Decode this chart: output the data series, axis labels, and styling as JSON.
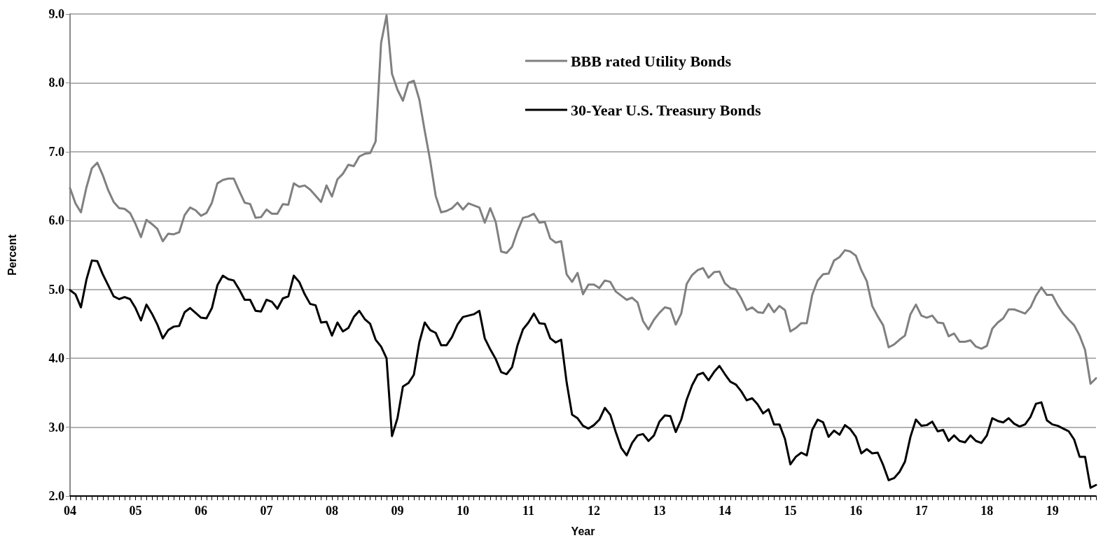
{
  "chart_data": {
    "type": "line",
    "xlabel": "Year",
    "ylabel": "Percent",
    "categories": [
      "04",
      null,
      null,
      null,
      null,
      null,
      null,
      null,
      null,
      null,
      null,
      null,
      "05",
      null,
      null,
      null,
      null,
      null,
      null,
      null,
      null,
      null,
      null,
      null,
      "06",
      null,
      null,
      null,
      null,
      null,
      null,
      null,
      null,
      null,
      null,
      null,
      "07",
      null,
      null,
      null,
      null,
      null,
      null,
      null,
      null,
      null,
      null,
      null,
      "08",
      null,
      null,
      null,
      null,
      null,
      null,
      null,
      null,
      null,
      null,
      null,
      "09",
      null,
      null,
      null,
      null,
      null,
      null,
      null,
      null,
      null,
      null,
      null,
      "10",
      null,
      null,
      null,
      null,
      null,
      null,
      null,
      null,
      null,
      null,
      null,
      "11",
      null,
      null,
      null,
      null,
      null,
      null,
      null,
      null,
      null,
      null,
      null,
      "12",
      null,
      null,
      null,
      null,
      null,
      null,
      null,
      null,
      null,
      null,
      null,
      "13",
      null,
      null,
      null,
      null,
      null,
      null,
      null,
      null,
      null,
      null,
      null,
      "14",
      null,
      null,
      null,
      null,
      null,
      null,
      null,
      null,
      null,
      null,
      null,
      "15",
      null,
      null,
      null,
      null,
      null,
      null,
      null,
      null,
      null,
      null,
      null,
      "16",
      null,
      null,
      null,
      null,
      null,
      null,
      null,
      null,
      null,
      null,
      null,
      "17",
      null,
      null,
      null,
      null,
      null,
      null,
      null,
      null,
      null,
      null,
      null,
      "18",
      null,
      null,
      null,
      null,
      null,
      null,
      null,
      null,
      null,
      null,
      null,
      "19",
      null,
      null,
      null,
      null,
      null,
      null,
      null,
      null
    ],
    "series": [
      {
        "name": "BBB rated Utility Bonds",
        "color": "#808080",
        "values": [
          6.47,
          6.25,
          6.12,
          6.48,
          6.76,
          6.84,
          6.66,
          6.44,
          6.27,
          6.18,
          6.17,
          6.11,
          5.95,
          5.76,
          6.01,
          5.95,
          5.88,
          5.7,
          5.81,
          5.8,
          5.83,
          6.08,
          6.19,
          6.15,
          6.07,
          6.11,
          6.26,
          6.54,
          6.59,
          6.61,
          6.61,
          6.43,
          6.26,
          6.24,
          6.04,
          6.05,
          6.16,
          6.1,
          6.1,
          6.24,
          6.23,
          6.54,
          6.49,
          6.51,
          6.45,
          6.36,
          6.27,
          6.51,
          6.35,
          6.6,
          6.68,
          6.81,
          6.79,
          6.93,
          6.97,
          6.98,
          7.15,
          8.58,
          8.98,
          8.13,
          7.9,
          7.74,
          8.0,
          8.03,
          7.76,
          7.3,
          6.87,
          6.36,
          6.12,
          6.14,
          6.18,
          6.26,
          6.16,
          6.25,
          6.22,
          6.19,
          5.97,
          6.18,
          5.98,
          5.55,
          5.53,
          5.62,
          5.85,
          6.04,
          6.06,
          6.1,
          5.97,
          5.98,
          5.74,
          5.68,
          5.7,
          5.22,
          5.11,
          5.24,
          4.93,
          5.07,
          5.07,
          5.02,
          5.13,
          5.11,
          4.97,
          4.91,
          4.85,
          4.88,
          4.81,
          4.54,
          4.42,
          4.56,
          4.66,
          4.74,
          4.72,
          4.49,
          4.65,
          5.08,
          5.21,
          5.28,
          5.31,
          5.17,
          5.25,
          5.26,
          5.09,
          5.02,
          5.0,
          4.87,
          4.7,
          4.74,
          4.67,
          4.66,
          4.79,
          4.67,
          4.76,
          4.7,
          4.39,
          4.44,
          4.51,
          4.51,
          4.92,
          5.13,
          5.22,
          5.23,
          5.42,
          5.47,
          5.57,
          5.55,
          5.49,
          5.28,
          5.12,
          4.76,
          4.61,
          4.48,
          4.16,
          4.2,
          4.27,
          4.33,
          4.64,
          4.78,
          4.62,
          4.59,
          4.62,
          4.52,
          4.51,
          4.32,
          4.36,
          4.24,
          4.24,
          4.26,
          4.17,
          4.14,
          4.18,
          4.43,
          4.52,
          4.58,
          4.71,
          4.71,
          4.68,
          4.65,
          4.74,
          4.91,
          5.03,
          4.92,
          4.92,
          4.77,
          4.65,
          4.56,
          4.48,
          4.33,
          4.12,
          3.63,
          3.71
        ]
      },
      {
        "name": "30-Year U.S. Treasury Bonds",
        "color": "#000000",
        "values": [
          4.99,
          4.93,
          4.74,
          5.14,
          5.42,
          5.41,
          5.22,
          5.06,
          4.9,
          4.86,
          4.89,
          4.86,
          4.73,
          4.55,
          4.78,
          4.65,
          4.49,
          4.29,
          4.41,
          4.46,
          4.47,
          4.67,
          4.73,
          4.66,
          4.59,
          4.58,
          4.73,
          5.06,
          5.2,
          5.15,
          5.13,
          5.0,
          4.85,
          4.85,
          4.69,
          4.68,
          4.85,
          4.82,
          4.72,
          4.87,
          4.9,
          5.2,
          5.11,
          4.93,
          4.79,
          4.77,
          4.52,
          4.53,
          4.33,
          4.52,
          4.39,
          4.44,
          4.6,
          4.69,
          4.57,
          4.5,
          4.27,
          4.17,
          4.0,
          2.87,
          3.13,
          3.59,
          3.64,
          3.76,
          4.23,
          4.52,
          4.41,
          4.37,
          4.19,
          4.19,
          4.31,
          4.49,
          4.6,
          4.62,
          4.64,
          4.69,
          4.29,
          4.13,
          3.99,
          3.8,
          3.77,
          3.87,
          4.19,
          4.42,
          4.52,
          4.65,
          4.51,
          4.5,
          4.29,
          4.23,
          4.27,
          3.65,
          3.18,
          3.13,
          3.02,
          2.98,
          3.03,
          3.11,
          3.28,
          3.18,
          2.93,
          2.7,
          2.59,
          2.77,
          2.88,
          2.9,
          2.8,
          2.88,
          3.08,
          3.17,
          3.16,
          2.93,
          3.11,
          3.4,
          3.61,
          3.76,
          3.79,
          3.68,
          3.8,
          3.89,
          3.77,
          3.66,
          3.62,
          3.52,
          3.39,
          3.42,
          3.33,
          3.2,
          3.26,
          3.04,
          3.04,
          2.83,
          2.46,
          2.57,
          2.63,
          2.59,
          2.96,
          3.11,
          3.07,
          2.86,
          2.95,
          2.89,
          3.03,
          2.97,
          2.86,
          2.62,
          2.68,
          2.62,
          2.63,
          2.45,
          2.23,
          2.26,
          2.35,
          2.5,
          2.86,
          3.11,
          3.02,
          3.03,
          3.08,
          2.94,
          2.96,
          2.8,
          2.88,
          2.8,
          2.78,
          2.88,
          2.8,
          2.77,
          2.88,
          3.13,
          3.09,
          3.07,
          3.13,
          3.05,
          3.01,
          3.04,
          3.15,
          3.34,
          3.36,
          3.1,
          3.04,
          3.02,
          2.98,
          2.94,
          2.82,
          2.57,
          2.57,
          2.12,
          2.16
        ]
      }
    ],
    "ylim": [
      2,
      9
    ],
    "yticks": [
      {
        "value": 2,
        "label": "2.0"
      },
      {
        "value": 3,
        "label": "3.0"
      },
      {
        "value": 4,
        "label": "4.0"
      },
      {
        "value": 5,
        "label": "5.0"
      },
      {
        "value": 6,
        "label": "6.0"
      },
      {
        "value": 7,
        "label": "7.0"
      },
      {
        "value": 8,
        "label": "8.0"
      },
      {
        "value": 9,
        "label": "9.0"
      }
    ],
    "grid": "y",
    "legend": "top",
    "marker": "none",
    "line_style": "solid"
  }
}
